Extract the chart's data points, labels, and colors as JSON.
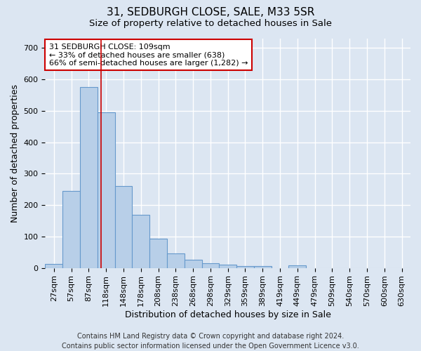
{
  "title1": "31, SEDBURGH CLOSE, SALE, M33 5SR",
  "title2": "Size of property relative to detached houses in Sale",
  "xlabel": "Distribution of detached houses by size in Sale",
  "ylabel": "Number of detached properties",
  "bar_values": [
    12,
    245,
    575,
    495,
    260,
    170,
    92,
    47,
    25,
    14,
    10,
    6,
    5,
    0,
    7,
    0,
    0,
    0,
    0,
    0,
    0
  ],
  "bar_labels": [
    "27sqm",
    "57sqm",
    "87sqm",
    "118sqm",
    "148sqm",
    "178sqm",
    "208sqm",
    "238sqm",
    "268sqm",
    "298sqm",
    "329sqm",
    "359sqm",
    "389sqm",
    "419sqm",
    "449sqm",
    "479sqm",
    "509sqm",
    "540sqm",
    "570sqm",
    "600sqm",
    "630sqm"
  ],
  "bar_color": "#b8cfe8",
  "bar_edge_color": "#6699cc",
  "background_color": "#dce6f2",
  "grid_color": "#ffffff",
  "vline_color": "#cc0000",
  "vline_x_index": 2.71,
  "annotation_text": "31 SEDBURGH CLOSE: 109sqm\n← 33% of detached houses are smaller (638)\n66% of semi-detached houses are larger (1,282) →",
  "annotation_box_color": "#ffffff",
  "annotation_box_edge": "#cc0000",
  "ylim": [
    0,
    730
  ],
  "yticks": [
    0,
    100,
    200,
    300,
    400,
    500,
    600,
    700
  ],
  "title_fontsize": 11,
  "subtitle_fontsize": 9.5,
  "axis_label_fontsize": 9,
  "tick_fontsize": 8,
  "annotation_fontsize": 8,
  "footer_fontsize": 7,
  "footer": "Contains HM Land Registry data © Crown copyright and database right 2024.\nContains public sector information licensed under the Open Government Licence v3.0."
}
